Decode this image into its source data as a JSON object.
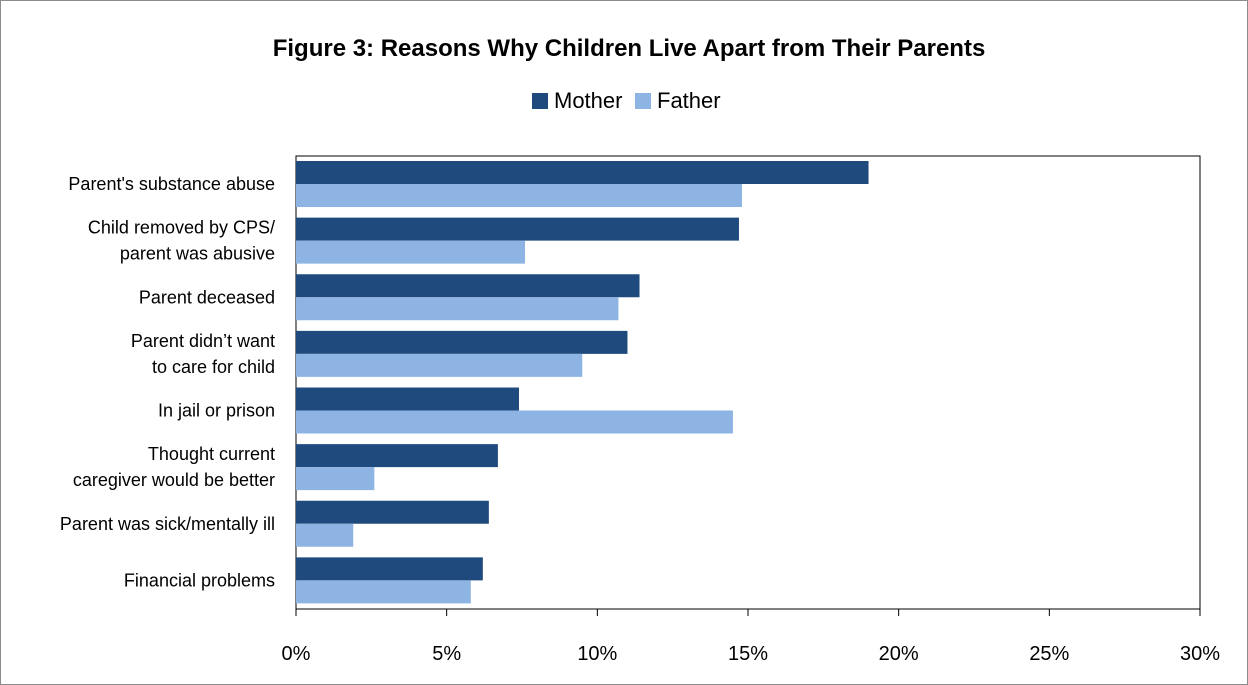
{
  "chart_data": {
    "type": "bar",
    "orientation": "horizontal",
    "title": "Figure 3: Reasons Why Children Live Apart from Their Parents",
    "categories": [
      [
        "Parent's substance abuse"
      ],
      [
        "Child removed by CPS/",
        "parent was abusive"
      ],
      [
        "Parent deceased"
      ],
      [
        "Parent didn’t want",
        "to care for child"
      ],
      [
        "In jail or prison"
      ],
      [
        "Thought current",
        "caregiver would be better"
      ],
      [
        "Parent was sick/mentally ill"
      ],
      [
        "Financial problems"
      ]
    ],
    "series": [
      {
        "name": "Mother",
        "color": "#1f4a7d",
        "values": [
          19.0,
          14.7,
          11.4,
          11.0,
          7.4,
          6.7,
          6.4,
          6.2
        ]
      },
      {
        "name": "Father",
        "color": "#8eb4e3",
        "values": [
          14.8,
          7.6,
          10.7,
          9.5,
          14.5,
          2.6,
          1.9,
          5.8
        ]
      }
    ],
    "xlim": [
      0,
      30
    ],
    "xticks": [
      0,
      5,
      10,
      15,
      20,
      25,
      30
    ],
    "xtick_labels": [
      "0%",
      "5%",
      "10%",
      "15%",
      "20%",
      "25%",
      "30%"
    ],
    "legend_position": "top-center",
    "grid": false
  }
}
